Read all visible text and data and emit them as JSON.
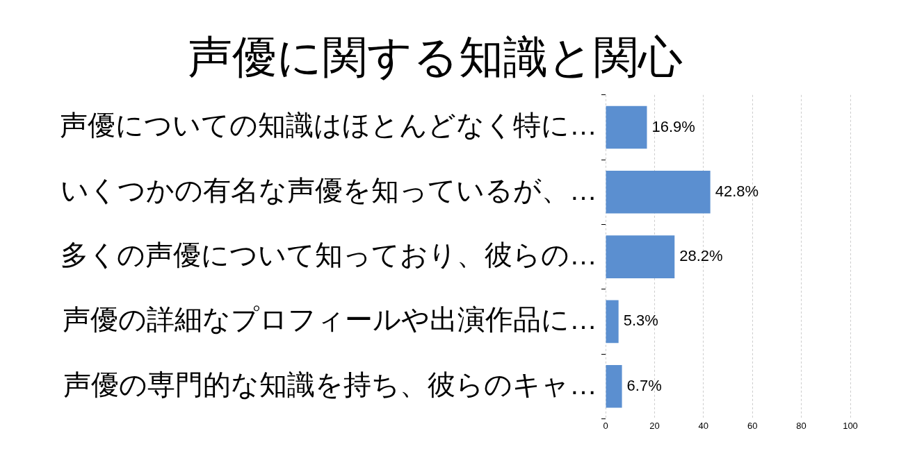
{
  "chart_data": {
    "type": "bar",
    "orientation": "horizontal",
    "title": "声優に関する知識と関心",
    "categories": [
      "声優についての知識はほとんどなく特に…",
      "いくつかの有名な声優を知っているが、…",
      "多くの声優について知っており、彼らの…",
      "声優の詳細なプロフィールや出演作品に…",
      "声優の専門的な知識を持ち、彼らのキャ…"
    ],
    "values": [
      16.9,
      42.8,
      28.2,
      5.3,
      6.7
    ],
    "value_labels": [
      "16.9%",
      "42.8%",
      "28.2%",
      "5.3%",
      "6.7%"
    ],
    "color": "#5b8fd0",
    "xlim": [
      0,
      100
    ],
    "xticks": [
      0,
      20,
      40,
      60,
      80,
      100
    ],
    "grid": "x"
  }
}
